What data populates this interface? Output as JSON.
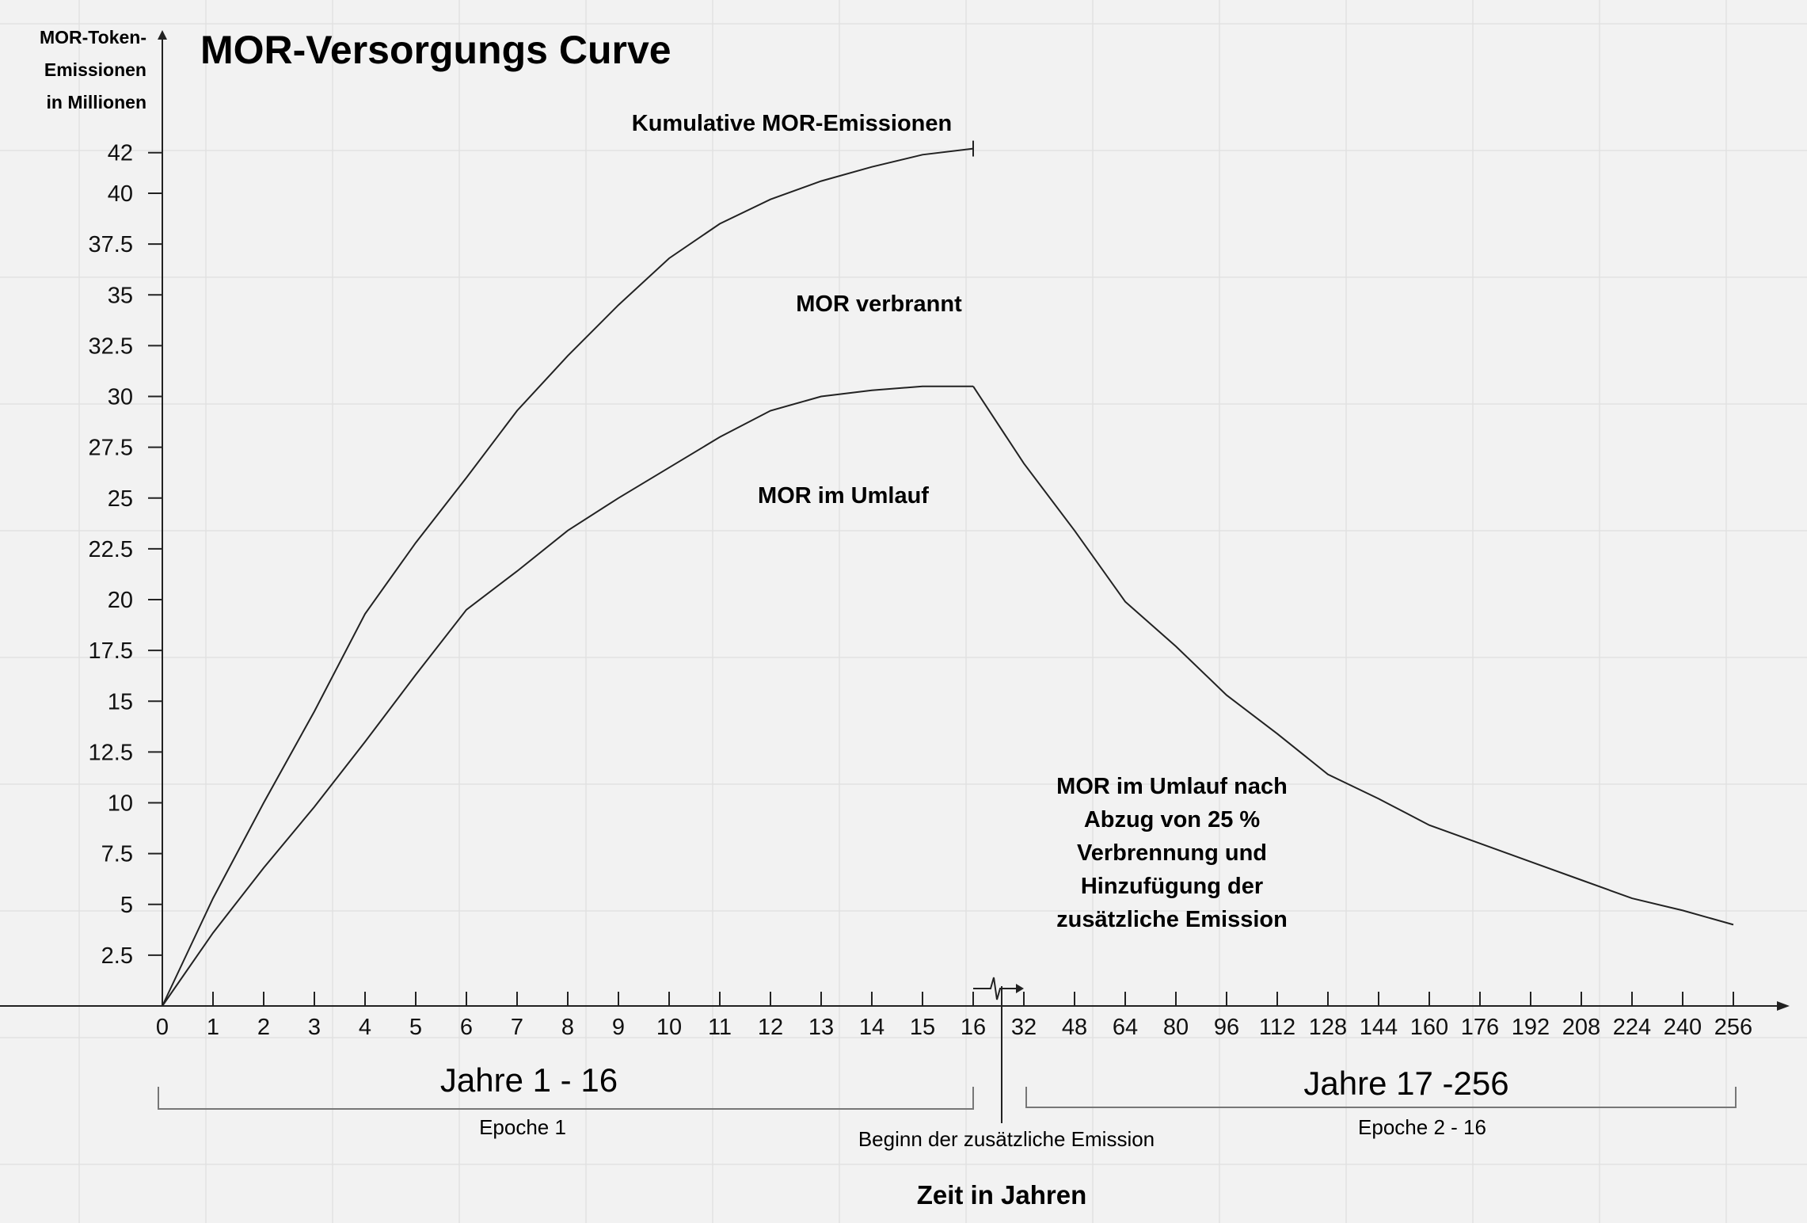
{
  "chart_data": {
    "type": "line",
    "title": "MOR-Versorgungs Curve",
    "ylabel": [
      "MOR-Token-",
      "Emissionen",
      "in Millionen"
    ],
    "xlabel": "Zeit in Jahren",
    "ylim": [
      0,
      42
    ],
    "yticks": [
      "2.5",
      "5",
      "7.5",
      "10",
      "12.5",
      "15",
      "17.5",
      "20",
      "22.5",
      "25",
      "27.5",
      "30",
      "32.5",
      "35",
      "37.5",
      "40",
      "42"
    ],
    "ytick_values": [
      2.5,
      5,
      7.5,
      10,
      12.5,
      15,
      17.5,
      20,
      22.5,
      25,
      27.5,
      30,
      32.5,
      35,
      37.5,
      40,
      42
    ],
    "xticks": [
      "0",
      "1",
      "2",
      "3",
      "4",
      "5",
      "6",
      "7",
      "8",
      "9",
      "10",
      "11",
      "12",
      "13",
      "14",
      "15",
      "16",
      "32",
      "48",
      "64",
      "80",
      "96",
      "112",
      "128",
      "144",
      "160",
      "176",
      "192",
      "208",
      "224",
      "240",
      "256"
    ],
    "grid": true,
    "series": [
      {
        "name": "Kumulative MOR-Emissionen",
        "x": [
          0,
          1,
          2,
          3,
          4,
          5,
          6,
          7,
          8,
          9,
          10,
          11,
          12,
          13,
          14,
          15,
          16
        ],
        "values": [
          0,
          5.3,
          10.0,
          14.5,
          19.3,
          22.8,
          26.0,
          29.3,
          32.0,
          34.5,
          36.8,
          38.5,
          39.7,
          40.6,
          41.3,
          41.9,
          42.2
        ]
      },
      {
        "name": "MOR im Umlauf",
        "x": [
          0,
          1,
          2,
          3,
          4,
          5,
          6,
          7,
          8,
          9,
          10,
          11,
          12,
          13,
          14,
          15,
          16
        ],
        "values": [
          0,
          3.6,
          6.8,
          9.8,
          13.0,
          16.3,
          19.5,
          21.4,
          23.4,
          25.0,
          26.5,
          28.0,
          29.3,
          30.0,
          30.3,
          30.5,
          30.5
        ]
      },
      {
        "name": "MOR im Umlauf nach Abzug von 25 % Verbrennung und Hinzufügung der zusätzliche Emission",
        "x": [
          16,
          32,
          48,
          64,
          80,
          96,
          112,
          128,
          144,
          160,
          176,
          192,
          208,
          224,
          240,
          256
        ],
        "values": [
          30.5,
          26.7,
          23.4,
          19.9,
          17.7,
          15.3,
          13.4,
          11.4,
          10.2,
          8.9,
          8.0,
          7.1,
          6.2,
          5.3,
          4.7,
          4.0
        ]
      }
    ],
    "annotations": {
      "cumulative": "Kumulative MOR-Emissionen",
      "burned": "MOR verbrannt",
      "circulating": "MOR im Umlauf",
      "after_burn": [
        "MOR im Umlauf nach",
        "Abzug von 25 %",
        "Verbrennung und",
        "Hinzufügung der",
        "zusätzliche Emission"
      ],
      "period1": "Jahre 1 - 16",
      "epoch1": "Epoche 1",
      "period2": "Jahre 17 -256",
      "epoch2": "Epoche 2 - 16",
      "emission_start": "Beginn der zusätzliche Emission"
    }
  }
}
